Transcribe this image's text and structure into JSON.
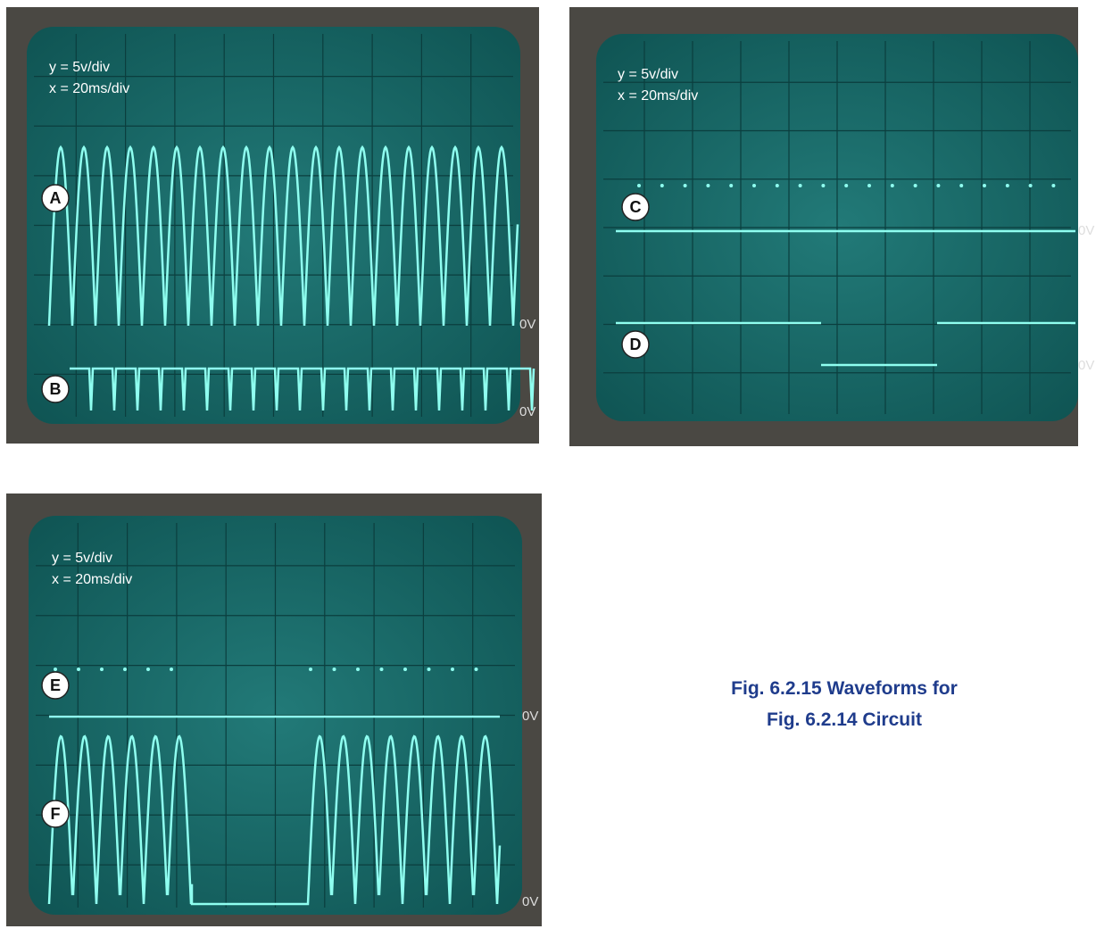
{
  "panels": [
    {
      "scale_y": "y = 5v/div",
      "scale_x": "x = 20ms/div",
      "traces": [
        {
          "label": "A",
          "zero_label": "0V"
        },
        {
          "label": "B",
          "zero_label": "0V"
        }
      ]
    },
    {
      "scale_y": "y = 5v/div",
      "scale_x": "x = 20ms/div",
      "traces": [
        {
          "label": "C",
          "zero_label": "0V"
        },
        {
          "label": "D",
          "zero_label": "0V"
        }
      ]
    },
    {
      "scale_y": "y = 5v/div",
      "scale_x": "x = 20ms/div",
      "traces": [
        {
          "label": "E",
          "zero_label": "0V"
        },
        {
          "label": "F",
          "zero_label": "0V"
        }
      ]
    }
  ],
  "caption": [
    "Fig. 6.2.15 Waveforms for",
    "Fig. 6.2.14 Circuit"
  ]
}
